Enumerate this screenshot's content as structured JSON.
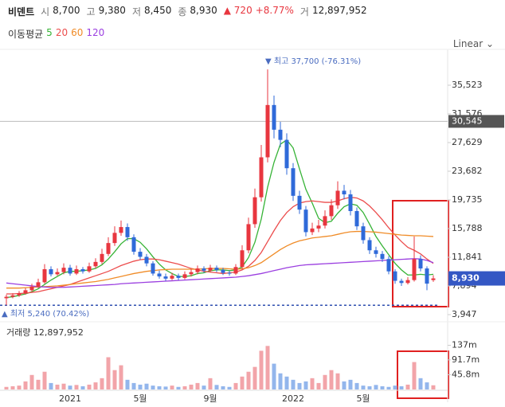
{
  "chart_data": {
    "type": "candlestick",
    "title": "비덴트",
    "quote": [
      {
        "label": "시",
        "value": "8,700"
      },
      {
        "label": "고",
        "value": "9,380"
      },
      {
        "label": "저",
        "value": "8,450"
      },
      {
        "label": "종",
        "value": "8,930"
      }
    ],
    "change": "▲ 720",
    "change_pct": "+8.77%",
    "volume_label": "거",
    "volume_text": "12,897,952",
    "ma_title": "이동평균",
    "scale": "Linear",
    "categories": [
      null,
      null,
      null,
      null,
      null,
      null,
      null,
      null,
      null,
      null,
      "2021",
      null,
      null,
      null,
      null,
      null,
      null,
      null,
      null,
      null,
      null,
      "5월",
      null,
      null,
      null,
      null,
      null,
      null,
      null,
      null,
      null,
      null,
      "9월",
      null,
      null,
      null,
      null,
      null,
      null,
      null,
      null,
      null,
      null,
      null,
      null,
      "2022",
      null,
      null,
      null,
      null,
      null,
      null,
      null,
      null,
      null,
      null,
      "5월",
      null,
      null,
      null,
      null,
      null,
      null,
      null,
      null,
      null,
      null,
      null
    ],
    "open": [
      6200,
      6400,
      6600,
      6900,
      7300,
      7800,
      8400,
      10200,
      9500,
      9800,
      10400,
      9600,
      10200,
      9900,
      10600,
      11200,
      12300,
      13800,
      15200,
      16000,
      14600,
      12600,
      11900,
      11000,
      9600,
      9200,
      8900,
      9300,
      9000,
      9500,
      9800,
      10300,
      10000,
      10400,
      10100,
      9700,
      9600,
      10500,
      12800,
      16400,
      20100,
      25600,
      32800,
      29400,
      28000,
      24100,
      20300,
      18400,
      15300,
      15800,
      16200,
      17500,
      19000,
      21000,
      20500,
      18200,
      16100,
      14200,
      12800,
      12300,
      11600,
      9900,
      8600,
      8300,
      8700,
      11600,
      10300,
      8700
    ],
    "high": [
      6700,
      6900,
      7200,
      7600,
      8200,
      8900,
      10900,
      10600,
      10300,
      11000,
      10800,
      10700,
      10500,
      11100,
      11700,
      13000,
      14600,
      16100,
      16900,
      16500,
      15000,
      13100,
      12300,
      11300,
      10000,
      9600,
      9700,
      9600,
      9900,
      10200,
      10700,
      10600,
      10800,
      10700,
      10400,
      10000,
      10900,
      13500,
      17300,
      21300,
      27300,
      37700,
      34100,
      30500,
      28900,
      24800,
      21000,
      18900,
      16600,
      17000,
      18300,
      19800,
      22300,
      21800,
      21100,
      18700,
      16600,
      14600,
      13300,
      12700,
      12000,
      10200,
      8900,
      9100,
      14700,
      12100,
      10600,
      9380
    ],
    "low": [
      5240,
      6200,
      6400,
      6700,
      7100,
      7600,
      8200,
      9200,
      9300,
      9500,
      9300,
      9400,
      9600,
      9700,
      10300,
      10900,
      12000,
      13400,
      14800,
      14100,
      12200,
      11500,
      10600,
      9300,
      8900,
      8600,
      8700,
      8700,
      8800,
      9200,
      9500,
      9700,
      9800,
      9800,
      9400,
      9300,
      9400,
      10200,
      12400,
      15900,
      19500,
      24900,
      28200,
      27000,
      23200,
      19600,
      17800,
      14700,
      14900,
      15300,
      15800,
      17000,
      18500,
      19800,
      17600,
      15600,
      13700,
      12300,
      11800,
      11200,
      9500,
      8200,
      7900,
      8100,
      8500,
      9900,
      7300,
      8450
    ],
    "close": [
      6400,
      6600,
      6900,
      7300,
      7800,
      8400,
      10200,
      9500,
      9800,
      10400,
      9600,
      10200,
      9900,
      10600,
      11200,
      12300,
      13800,
      15200,
      16000,
      14600,
      12600,
      11900,
      11000,
      9600,
      9200,
      8900,
      9300,
      9000,
      9500,
      9800,
      10300,
      10000,
      10400,
      10100,
      9700,
      9600,
      10500,
      12800,
      16400,
      20100,
      25600,
      32800,
      29400,
      28000,
      24100,
      20300,
      18400,
      15300,
      15800,
      16200,
      17500,
      19000,
      21000,
      20500,
      18200,
      16100,
      14200,
      12800,
      12300,
      11600,
      9900,
      8600,
      8300,
      8700,
      11600,
      10300,
      8210,
      8930
    ],
    "up_color": "#e8363f",
    "down_color": "#2f6ad9",
    "series": [
      {
        "name": "5",
        "color": "#36b336",
        "values": [
          6300,
          6400,
          6600,
          6800,
          7100,
          7500,
          8100,
          8700,
          9200,
          9700,
          9900,
          9900,
          10000,
          10100,
          10300,
          10800,
          11600,
          12600,
          13700,
          14400,
          14400,
          13900,
          13000,
          11900,
          10900,
          10100,
          9600,
          9200,
          9200,
          9300,
          9600,
          9700,
          10000,
          10100,
          10100,
          10000,
          10100,
          10500,
          11800,
          13900,
          17100,
          21500,
          24900,
          27400,
          28000,
          26900,
          24000,
          21200,
          19300,
          17200,
          16600,
          16800,
          17900,
          18800,
          19200,
          19000,
          18000,
          16400,
          14700,
          13400,
          12200,
          11000,
          10100,
          9400,
          9400,
          9500,
          9400,
          9500
        ]
      },
      {
        "name": "20",
        "color": "#ec4d4d",
        "values": [
          6800,
          6800,
          6850,
          6900,
          7000,
          7100,
          7300,
          7500,
          7700,
          7900,
          8100,
          8400,
          8700,
          9000,
          9300,
          9600,
          9900,
          10300,
          10700,
          11000,
          11300,
          11500,
          11600,
          11600,
          11500,
          11300,
          11100,
          10900,
          10600,
          10300,
          10100,
          9900,
          9800,
          9700,
          9600,
          9700,
          9800,
          10100,
          10600,
          11400,
          12500,
          14000,
          15500,
          16900,
          18000,
          18800,
          19300,
          19500,
          19600,
          19500,
          19400,
          19400,
          19600,
          19900,
          20100,
          20000,
          19600,
          18900,
          18000,
          17000,
          15900,
          14900,
          14000,
          13200,
          12800,
          12300,
          11600,
          11000
        ]
      },
      {
        "name": "60",
        "color": "#f08c28",
        "values": [
          7600,
          7600,
          7600,
          7650,
          7700,
          7750,
          7800,
          7850,
          7900,
          8000,
          8100,
          8200,
          8300,
          8400,
          8500,
          8650,
          8800,
          9000,
          9200,
          9400,
          9600,
          9750,
          9900,
          10000,
          10100,
          10150,
          10200,
          10200,
          10200,
          10200,
          10200,
          10250,
          10300,
          10300,
          10300,
          10250,
          10200,
          10250,
          10400,
          10700,
          11100,
          11700,
          12300,
          12900,
          13400,
          13800,
          14100,
          14300,
          14500,
          14600,
          14700,
          14800,
          15000,
          15200,
          15350,
          15400,
          15400,
          15350,
          15300,
          15200,
          15100,
          15000,
          14900,
          14850,
          14800,
          14800,
          14750,
          14700
        ]
      },
      {
        "name": "120",
        "color": "#9b3fe0",
        "values": [
          8300,
          8200,
          8100,
          8000,
          7900,
          7800,
          7750,
          7700,
          7700,
          7700,
          7750,
          7800,
          7850,
          7900,
          7950,
          8000,
          8050,
          8100,
          8200,
          8250,
          8300,
          8350,
          8400,
          8450,
          8500,
          8550,
          8600,
          8650,
          8700,
          8750,
          8800,
          8850,
          8900,
          8950,
          9000,
          9050,
          9100,
          9200,
          9300,
          9450,
          9600,
          9800,
          10000,
          10200,
          10400,
          10550,
          10700,
          10800,
          10850,
          10900,
          10950,
          11000,
          11050,
          11100,
          11150,
          11200,
          11250,
          11300,
          11350,
          11400,
          11450,
          11500,
          11550,
          11600,
          11650,
          11600,
          11400,
          11100
        ]
      }
    ],
    "ylim": [
      3399,
      39580
    ],
    "yticks": [
      {
        "value": 3947,
        "label": "3,947"
      },
      {
        "value": 7894,
        "label": "7,894"
      },
      {
        "value": 11841,
        "label": "11,841"
      },
      {
        "value": 15788,
        "label": "15,788"
      },
      {
        "value": 19735,
        "label": "19,735"
      },
      {
        "value": 23682,
        "label": "23,682"
      },
      {
        "value": 27629,
        "label": "27,629"
      },
      {
        "value": 31576,
        "label": "31,576"
      },
      {
        "value": 35523,
        "label": "35,523"
      }
    ],
    "crosshair": {
      "value": 30545,
      "label": "30,545"
    },
    "last_price": {
      "value": 8930,
      "label": "8,930"
    },
    "high_marker": {
      "value": 37700,
      "label": "▼ 최고 37,700 (-76.31%)"
    },
    "low_marker": {
      "value": 5240,
      "label": "▲ 최저 5,240 (70.42%)"
    },
    "volume": {
      "title": "거래량 12,897,952",
      "values": [
        8,
        10,
        12,
        25,
        45,
        30,
        55,
        20,
        15,
        18,
        12,
        14,
        10,
        15,
        22,
        35,
        100,
        60,
        75,
        30,
        20,
        15,
        18,
        12,
        10,
        9,
        12,
        8,
        10,
        15,
        20,
        12,
        35,
        14,
        10,
        8,
        20,
        40,
        55,
        70,
        120,
        135,
        80,
        50,
        40,
        30,
        20,
        25,
        35,
        20,
        45,
        60,
        50,
        25,
        30,
        20,
        12,
        10,
        14,
        10,
        8,
        12,
        10,
        15,
        85,
        35,
        22,
        13
      ],
      "ylim": [
        0,
        200
      ],
      "yticks": [
        {
          "value": 45.8,
          "label": "45.8m"
        },
        {
          "value": 91.7,
          "label": "91.7m"
        },
        {
          "value": 137,
          "label": "137m"
        }
      ],
      "up_color": "#f2a4a9",
      "down_color": "#93b6ec"
    }
  }
}
